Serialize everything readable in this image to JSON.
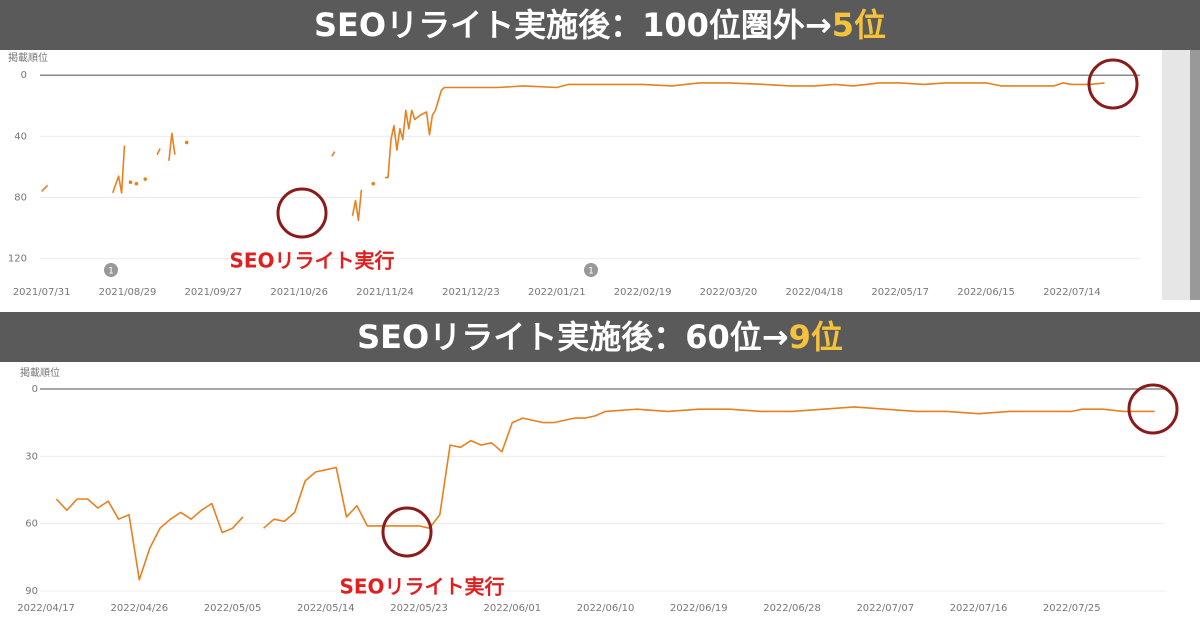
{
  "chart_data": [
    {
      "type": "line",
      "title": "SEOリライト実施後：100位圏外→",
      "title_highlight": "5位",
      "ylabel": "掲載順位",
      "annotation": "SEOリライト実行",
      "markers": [
        "1",
        "1"
      ],
      "color": "#e8801f",
      "xlim": [
        "2021/07/22",
        "2022/08/06"
      ],
      "xticks": [
        "2021/07/31",
        "2021/08/29",
        "2021/09/27",
        "2021/10/26",
        "2021/11/24",
        "2021/12/23",
        "2022/01/21",
        "2022/02/19",
        "2022/03/20",
        "2022/04/18",
        "2022/05/17",
        "2022/06/15",
        "2022/07/14"
      ],
      "ylim": [
        134,
        -8
      ],
      "yticks": [
        0,
        40,
        80,
        120
      ],
      "grid": true,
      "x": [
        "2021/07/31",
        "2021/08/02",
        "2021/08/05",
        "2021/08/24",
        "2021/08/26",
        "2021/08/27",
        "2021/08/28",
        "2021/08/29",
        "2021/08/30",
        "2021/08/31",
        "2021/09/01",
        "2021/09/02",
        "2021/09/04",
        "2021/09/05",
        "2021/09/08",
        "2021/09/09",
        "2021/09/10",
        "2021/09/12",
        "2021/09/13",
        "2021/09/14",
        "2021/09/16",
        "2021/09/18",
        "2021/09/20",
        "2021/11/06",
        "2021/11/07",
        "2021/11/09",
        "2021/11/13",
        "2021/11/14",
        "2021/11/15",
        "2021/11/16",
        "2021/11/18",
        "2021/11/20",
        "2021/11/22",
        "2021/11/24",
        "2021/11/25",
        "2021/11/26",
        "2021/11/27",
        "2021/11/28",
        "2021/11/29",
        "2021/11/30",
        "2021/12/01",
        "2021/12/02",
        "2021/12/03",
        "2021/12/04",
        "2021/12/06",
        "2021/12/08",
        "2021/12/09",
        "2021/12/10",
        "2021/12/11",
        "2021/12/13",
        "2021/12/14",
        "2021/12/23",
        "2022/01/01",
        "2022/01/10",
        "2022/01/21",
        "2022/01/25",
        "2022/02/05",
        "2022/02/19",
        "2022/03/01",
        "2022/03/10",
        "2022/03/20",
        "2022/04/01",
        "2022/04/10",
        "2022/04/18",
        "2022/04/25",
        "2022/05/01",
        "2022/05/10",
        "2022/05/17",
        "2022/05/25",
        "2022/06/01",
        "2022/06/10",
        "2022/06/15",
        "2022/06/20",
        "2022/07/01",
        "2022/07/08",
        "2022/07/11",
        "2022/07/14",
        "2022/07/20",
        "2022/07/25"
      ],
      "values": [
        76,
        72,
        null,
        77,
        66,
        77,
        46,
        null,
        70,
        null,
        71,
        null,
        68,
        null,
        52,
        48,
        null,
        56,
        38,
        52,
        null,
        44,
        null,
        53,
        50,
        null,
        92,
        82,
        95,
        75,
        null,
        71,
        null,
        67,
        67,
        42,
        33,
        49,
        35,
        42,
        23,
        35,
        23,
        29,
        26,
        24,
        39,
        26,
        23,
        10,
        8,
        8,
        8,
        7,
        8,
        6,
        6,
        6,
        7,
        5,
        5,
        6,
        7,
        7,
        6,
        7,
        5,
        5,
        6,
        5,
        5,
        5,
        7,
        7,
        7,
        5,
        6,
        6,
        5
      ]
    },
    {
      "type": "line",
      "title": "SEOリライト実施後：60位→",
      "title_highlight": "9位",
      "ylabel": "掲載順位",
      "annotation": "SEOリライト実行",
      "color": "#e8801f",
      "xlim": [
        "2022/04/14",
        "2022/08/03"
      ],
      "xticks": [
        "2022/04/17",
        "2022/04/26",
        "2022/05/05",
        "2022/05/14",
        "2022/05/23",
        "2022/06/01",
        "2022/06/10",
        "2022/06/19",
        "2022/06/28",
        "2022/07/07",
        "2022/07/16",
        "2022/07/25"
      ],
      "ylim": [
        94,
        -8
      ],
      "yticks": [
        0,
        30,
        60,
        90
      ],
      "grid": true,
      "x": [
        "2022/04/18",
        "2022/04/19",
        "2022/04/20",
        "2022/04/21",
        "2022/04/22",
        "2022/04/23",
        "2022/04/24",
        "2022/04/25",
        "2022/04/26",
        "2022/04/27",
        "2022/04/28",
        "2022/04/29",
        "2022/04/30",
        "2022/05/01",
        "2022/05/02",
        "2022/05/03",
        "2022/05/04",
        "2022/05/05",
        "2022/05/06",
        "2022/05/07",
        "2022/05/08",
        "2022/05/09",
        "2022/05/10",
        "2022/05/11",
        "2022/05/12",
        "2022/05/13",
        "2022/05/14",
        "2022/05/15",
        "2022/05/16",
        "2022/05/17",
        "2022/05/18",
        "2022/05/19",
        "2022/05/20",
        "2022/05/21",
        "2022/05/22",
        "2022/05/23",
        "2022/05/24",
        "2022/05/25",
        "2022/05/26",
        "2022/05/27",
        "2022/05/28",
        "2022/05/29",
        "2022/05/30",
        "2022/05/31",
        "2022/06/01",
        "2022/06/02",
        "2022/06/03",
        "2022/06/04",
        "2022/06/05",
        "2022/06/06",
        "2022/06/07",
        "2022/06/08",
        "2022/06/09",
        "2022/06/10",
        "2022/06/13",
        "2022/06/16",
        "2022/06/19",
        "2022/06/22",
        "2022/06/25",
        "2022/06/28",
        "2022/07/01",
        "2022/07/04",
        "2022/07/07",
        "2022/07/10",
        "2022/07/13",
        "2022/07/16",
        "2022/07/19",
        "2022/07/22",
        "2022/07/25",
        "2022/07/26",
        "2022/07/28",
        "2022/07/30",
        "2022/08/02"
      ],
      "values": [
        49,
        54,
        49,
        49,
        53,
        50,
        58,
        56,
        85,
        71,
        62,
        58,
        55,
        58,
        54,
        51,
        64,
        62,
        57,
        null,
        62,
        58,
        59,
        55,
        41,
        37,
        36,
        35,
        57,
        52,
        61,
        61,
        61,
        61,
        61,
        61,
        62,
        56,
        25,
        26,
        23,
        25,
        24,
        28,
        15,
        13,
        14,
        15,
        15,
        14,
        13,
        13,
        12,
        10,
        9,
        10,
        9,
        9,
        10,
        10,
        9,
        8,
        9,
        10,
        10,
        11,
        10,
        10,
        10,
        9,
        9,
        10,
        10
      ]
    }
  ]
}
